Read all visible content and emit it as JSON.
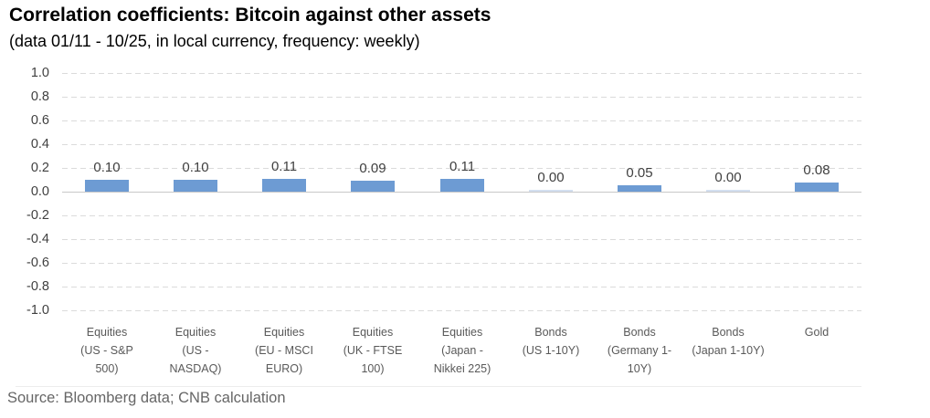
{
  "header": {
    "title": "Correlation coefficients: Bitcoin against other assets",
    "subtitle": "(data 01/11 - 10/25, in local currency, frequency: weekly)"
  },
  "footer": {
    "source": "Source: Bloomberg data; CNB calculation"
  },
  "chart_data": {
    "type": "bar",
    "title": "Correlation coefficients: Bitcoin against other assets",
    "subtitle": "(data 01/11 - 10/25, in local currency, frequency: weekly)",
    "categories": [
      "Equities (US - S&P 500)",
      "Equities (US - NASDAQ)",
      "Equities (EU - MSCI EURO)",
      "Equities (UK - FTSE 100)",
      "Equities (Japan - Nikkei 225)",
      "Bonds (US 1-10Y)",
      "Bonds (Germany 1-10Y)",
      "Bonds (Japan 1-10Y)",
      "Gold"
    ],
    "category_label_lines": [
      [
        "Equities",
        "(US - S&P",
        "500)"
      ],
      [
        "Equities",
        "(US -",
        "NASDAQ)"
      ],
      [
        "Equities",
        "(EU - MSCI",
        "EURO)"
      ],
      [
        "Equities",
        "(UK - FTSE",
        "100)"
      ],
      [
        "Equities",
        "(Japan  -",
        "Nikkei 225)"
      ],
      [
        "Bonds",
        "(US 1-10Y)"
      ],
      [
        "Bonds",
        "(Germany 1-",
        "10Y)"
      ],
      [
        "Bonds",
        "(Japan 1-10Y)"
      ],
      [
        "Gold"
      ]
    ],
    "values": [
      0.1,
      0.1,
      0.11,
      0.09,
      0.11,
      0.0,
      0.05,
      0.0,
      0.08
    ],
    "value_labels": [
      "0.10",
      "0.10",
      "0.11",
      "0.09",
      "0.11",
      "0.00",
      "0.05",
      "0.00",
      "0.08"
    ],
    "ylim": [
      -1.0,
      1.0
    ],
    "ytick_step": 0.2,
    "ytick_labels": [
      "1.0",
      "0.8",
      "0.6",
      "0.4",
      "0.2",
      "0.0",
      "-0.2",
      "-0.4",
      "-0.6",
      "-0.8",
      "-1.0"
    ],
    "grid": "horizontal-dashed",
    "legend": "none",
    "xlabel": "",
    "ylabel": "",
    "colors": {
      "bar": "#6D9BD3",
      "zero_height_bar": "#D3DFF0",
      "gridline": "#DBDBDB",
      "zero_line": "#C8C8C8",
      "axis_text": "#404040",
      "category_text": "#595959",
      "source_text": "#666666",
      "title_text": "#000000"
    }
  }
}
